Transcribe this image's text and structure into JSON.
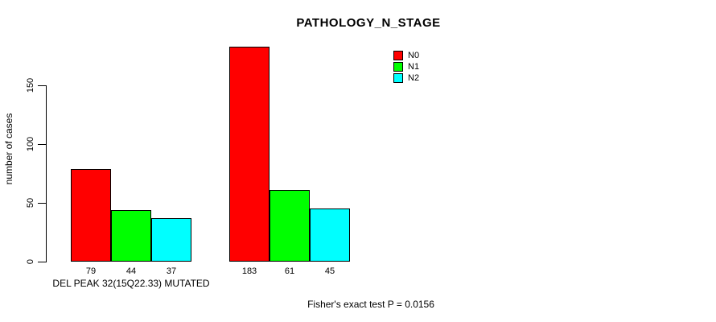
{
  "chart_data": {
    "type": "bar",
    "title": "PATHOLOGY_N_STAGE",
    "ylabel": "number of cases",
    "xlabel": "",
    "categories": [
      "DEL PEAK 32(15Q22.33) MUTATED",
      ""
    ],
    "series": [
      {
        "name": "N0",
        "color": "#ff0000",
        "values": [
          79,
          183
        ]
      },
      {
        "name": "N1",
        "color": "#00ff00",
        "values": [
          44,
          61
        ]
      },
      {
        "name": "N2",
        "color": "#00ffff",
        "values": [
          37,
          45
        ]
      }
    ],
    "y_ticks": [
      0,
      50,
      100,
      150
    ],
    "ylim": [
      0,
      190
    ],
    "grid": false,
    "legend_position": "top-right",
    "bar_values_shown_below_bars": true,
    "annotation": "Fisher's exact test P = 0.0156"
  }
}
